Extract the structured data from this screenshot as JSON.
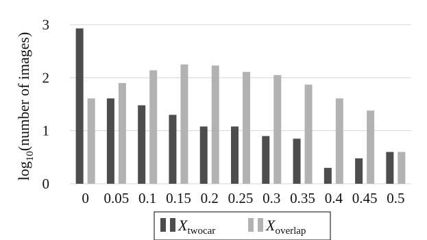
{
  "chart_data": {
    "type": "bar",
    "categories": [
      "0",
      "0.05",
      "0.1",
      "0.15",
      "0.2",
      "0.25",
      "0.3",
      "0.35",
      "0.4",
      "0.45",
      "0.5"
    ],
    "series": [
      {
        "name_main": "X",
        "name_sub": "twocar",
        "color": "#4d4d4d",
        "values": [
          2.93,
          1.61,
          1.48,
          1.3,
          1.08,
          1.08,
          0.9,
          0.85,
          0.3,
          0.48,
          0.6
        ]
      },
      {
        "name_main": "X",
        "name_sub": "overlap",
        "color": "#b2b2b2",
        "values": [
          1.61,
          1.9,
          2.14,
          2.25,
          2.23,
          2.11,
          2.05,
          1.87,
          1.61,
          1.38,
          0.6
        ]
      }
    ],
    "ylabel_main": "log",
    "ylabel_sub": "10",
    "ylabel_rest": "(number of images)",
    "yticks": [
      "0",
      "1",
      "2",
      "3"
    ],
    "ylim": [
      0,
      3
    ],
    "grid": "horizontal",
    "legend_position": "bottom"
  }
}
